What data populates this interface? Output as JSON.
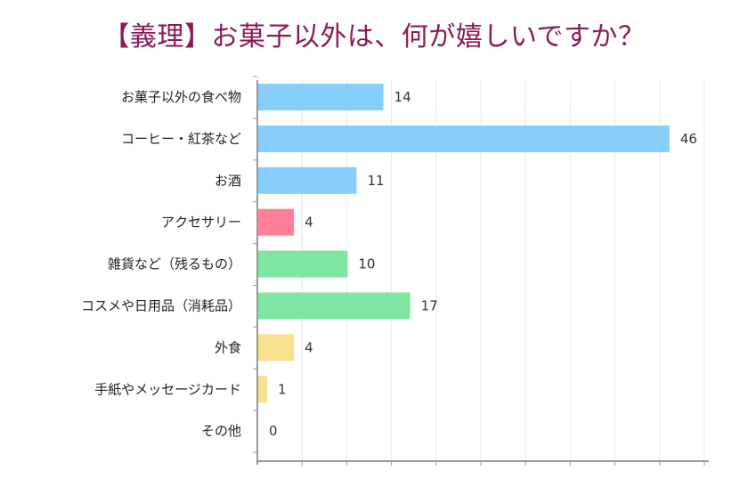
{
  "title": "【義理】お菓子以外は、何が嬉しいですか？",
  "chart_data": {
    "type": "bar",
    "orientation": "horizontal",
    "title": "【義理】お菓子以外は、何が嬉しいですか？",
    "categories": [
      "お菓子以外の食べ物",
      "コーヒー・紅茶など",
      "お酒",
      "アクセサリー",
      "雑貨など（残るもの）",
      "コスメや日用品（消耗品）",
      "外食",
      "手紙やメッセージカード",
      "その他"
    ],
    "values": [
      14,
      46,
      11,
      4,
      10,
      17,
      4,
      1,
      0
    ],
    "colors": [
      "#87cefa",
      "#87cefa",
      "#87cefa",
      "#ff7f98",
      "#7ee6a0",
      "#7ee6a0",
      "#f8e08e",
      "#f8e08e",
      "#f8e08e"
    ],
    "xlim": [
      0,
      50
    ],
    "grid": true,
    "legend": "none"
  }
}
